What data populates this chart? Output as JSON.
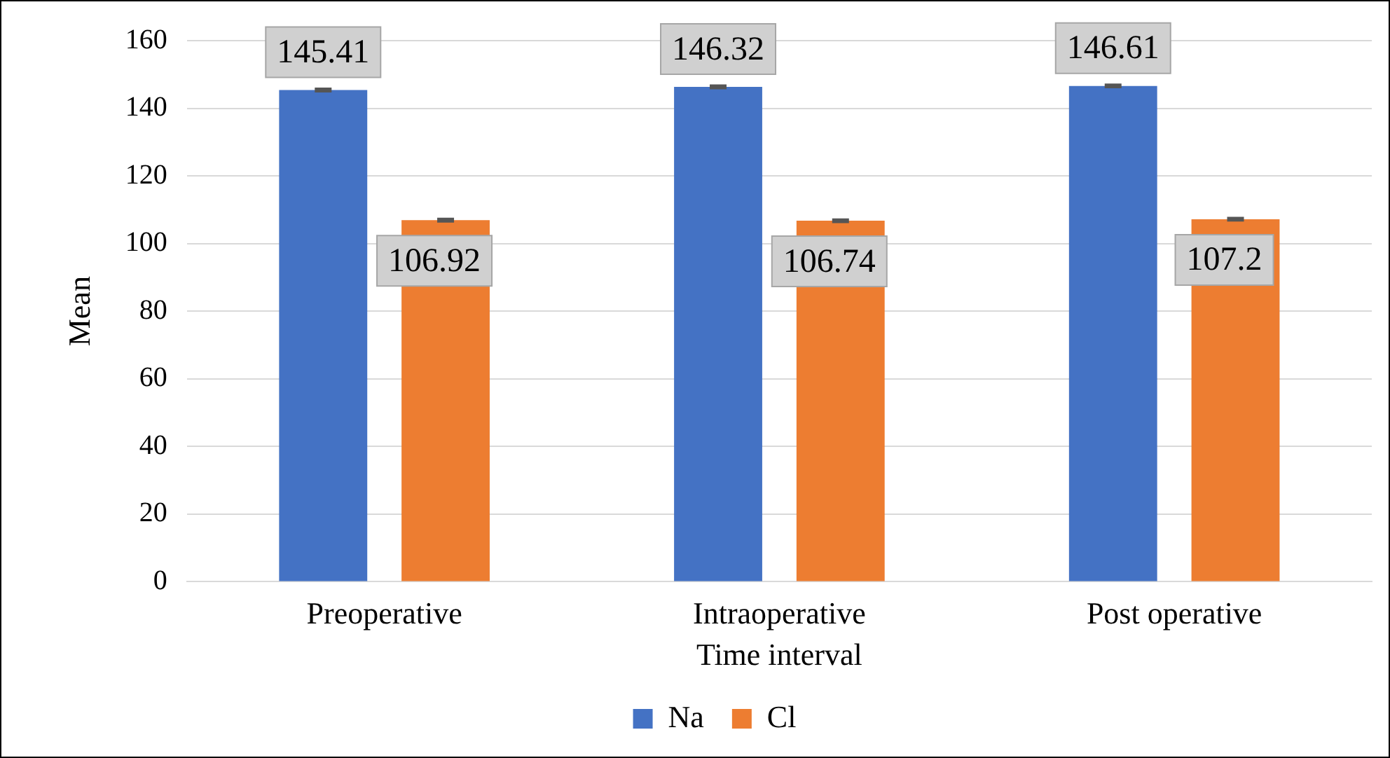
{
  "chart_data": {
    "type": "bar",
    "xlabel": "Time interval",
    "ylabel": "Mean",
    "categories": [
      "Preoperative",
      "Intraoperative",
      "Post operative"
    ],
    "series": [
      {
        "name": "Na",
        "color": "#4472c4",
        "values": [
          145.41,
          146.32,
          146.61
        ],
        "errors": [
          0.3,
          0.3,
          0.3
        ]
      },
      {
        "name": "Cl",
        "color": "#ed7d31",
        "values": [
          106.92,
          106.74,
          107.2
        ],
        "errors": [
          0.3,
          0.3,
          0.3
        ]
      }
    ],
    "ylim": [
      0,
      160
    ],
    "yticks": [
      0,
      20,
      40,
      60,
      80,
      100,
      120,
      140,
      160
    ],
    "grid": "y",
    "legend": "bottom",
    "data_labels": true
  }
}
